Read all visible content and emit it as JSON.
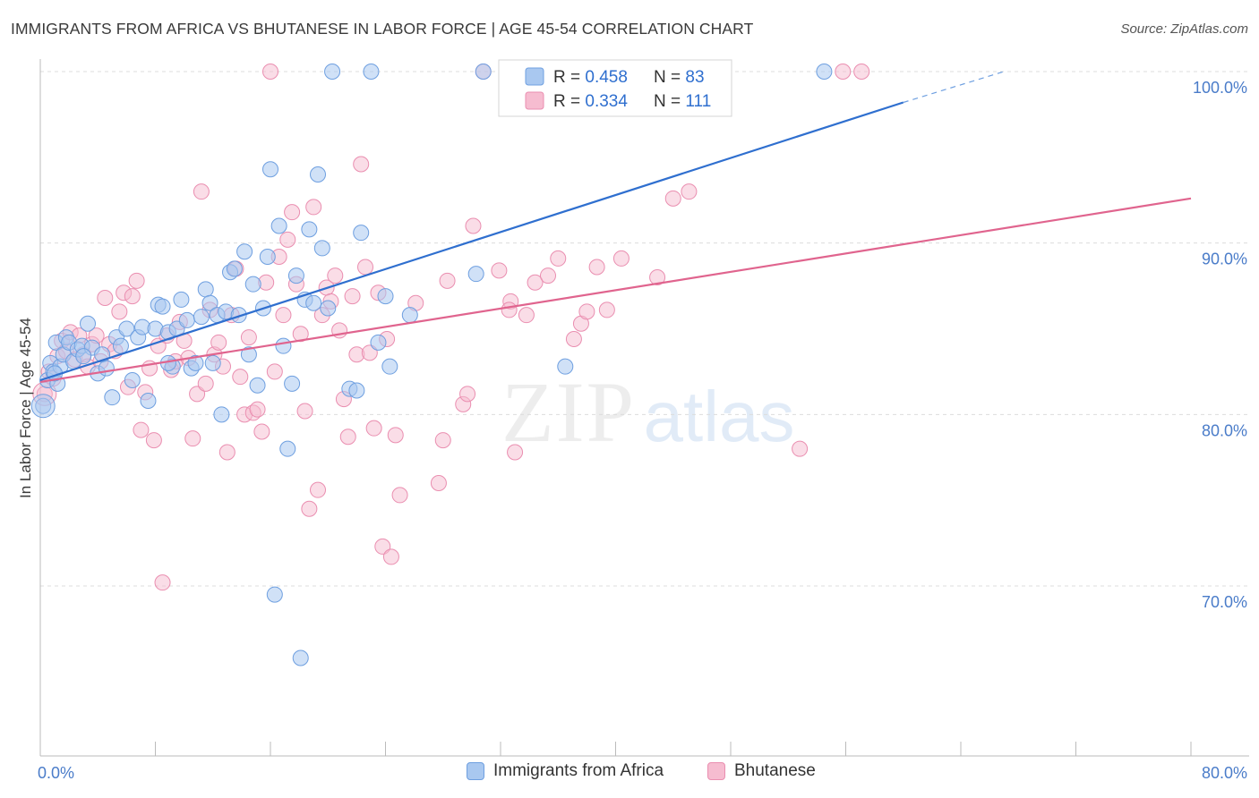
{
  "title": "IMMIGRANTS FROM AFRICA VS BHUTANESE IN LABOR FORCE | AGE 45-54 CORRELATION CHART",
  "source": "Source: ZipAtlas.com",
  "watermark": {
    "zip": "ZIP",
    "atlas": "atlas"
  },
  "colors": {
    "blue_fill": "#a9c8f0",
    "blue_stroke": "#6e9fe0",
    "blue_line": "#2f6fcf",
    "pink_fill": "#f6bcd0",
    "pink_stroke": "#ea8eb0",
    "pink_line": "#e0648e",
    "tick": "#4a7cc9",
    "grid": "#dcdcdc"
  },
  "legend": {
    "blue": {
      "r_label": "R = ",
      "r_value": "0.458",
      "n_label": "N = ",
      "n_value": "83"
    },
    "pink": {
      "r_label": "R = ",
      "r_value": "0.334",
      "n_label": "N = ",
      "n_value": "111"
    }
  },
  "chart_data": {
    "type": "scatter",
    "title": "IMMIGRANTS FROM AFRICA VS BHUTANESE IN LABOR FORCE | AGE 45-54 CORRELATION CHART",
    "xlabel": "",
    "ylabel": "In Labor Force | Age 45-54",
    "xlim": [
      0,
      80
    ],
    "ylim": [
      62,
      100
    ],
    "x_tick_labels": [
      "0.0%",
      "80.0%"
    ],
    "y_ticks": [
      70,
      80,
      90,
      100
    ],
    "y_tick_labels": [
      "70.0%",
      "80.0%",
      "90.0%",
      "100.0%"
    ],
    "grid": "horizontal dashed",
    "legend_position": "top-center",
    "series": [
      {
        "name": "Immigrants from Africa",
        "r": 0.458,
        "n": 83,
        "trend": {
          "x0": 0,
          "y0": 82.0,
          "x1": 60,
          "y1": 98.2,
          "dashed_to_x": 67,
          "dashed_to_y": 100.0
        },
        "points": [
          [
            0.2,
            80.5
          ],
          [
            0.5,
            82.0
          ],
          [
            0.7,
            83.0
          ],
          [
            0.9,
            82.5
          ],
          [
            1.1,
            84.2
          ],
          [
            1.2,
            81.8
          ],
          [
            1.4,
            82.8
          ],
          [
            1.6,
            83.5
          ],
          [
            1.8,
            84.5
          ],
          [
            2.0,
            84.2
          ],
          [
            2.3,
            83.1
          ],
          [
            2.6,
            83.8
          ],
          [
            2.9,
            84.0
          ],
          [
            3.3,
            85.3
          ],
          [
            3.6,
            83.9
          ],
          [
            4.0,
            82.4
          ],
          [
            4.3,
            83.5
          ],
          [
            4.6,
            82.7
          ],
          [
            5.0,
            81.0
          ],
          [
            5.3,
            84.5
          ],
          [
            5.6,
            84.0
          ],
          [
            6.0,
            85.0
          ],
          [
            6.4,
            82.0
          ],
          [
            6.8,
            84.5
          ],
          [
            7.1,
            85.1
          ],
          [
            7.5,
            80.8
          ],
          [
            8.0,
            85.0
          ],
          [
            8.2,
            86.4
          ],
          [
            8.5,
            86.3
          ],
          [
            8.9,
            84.8
          ],
          [
            9.2,
            82.8
          ],
          [
            9.5,
            85.0
          ],
          [
            9.8,
            86.7
          ],
          [
            10.2,
            85.5
          ],
          [
            10.5,
            82.7
          ],
          [
            10.8,
            83.0
          ],
          [
            11.2,
            85.7
          ],
          [
            11.5,
            87.3
          ],
          [
            11.8,
            86.5
          ],
          [
            12.0,
            83.0
          ],
          [
            12.3,
            85.8
          ],
          [
            12.6,
            80.0
          ],
          [
            12.9,
            86.0
          ],
          [
            13.2,
            88.3
          ],
          [
            13.5,
            88.5
          ],
          [
            13.8,
            85.8
          ],
          [
            14.2,
            89.5
          ],
          [
            14.5,
            83.5
          ],
          [
            14.8,
            87.6
          ],
          [
            15.1,
            81.7
          ],
          [
            15.5,
            86.2
          ],
          [
            15.8,
            89.2
          ],
          [
            16.0,
            94.3
          ],
          [
            16.3,
            69.5
          ],
          [
            16.6,
            91.0
          ],
          [
            16.9,
            84.0
          ],
          [
            17.2,
            78.0
          ],
          [
            17.5,
            81.8
          ],
          [
            17.8,
            88.1
          ],
          [
            18.1,
            65.8
          ],
          [
            18.4,
            86.7
          ],
          [
            18.7,
            90.8
          ],
          [
            19.0,
            86.5
          ],
          [
            19.3,
            94.0
          ],
          [
            19.6,
            89.7
          ],
          [
            20.0,
            86.2
          ],
          [
            20.3,
            100.0
          ],
          [
            21.5,
            81.5
          ],
          [
            22.0,
            81.4
          ],
          [
            22.3,
            90.6
          ],
          [
            23.0,
            100.0
          ],
          [
            23.5,
            84.2
          ],
          [
            24.0,
            86.9
          ],
          [
            24.3,
            82.8
          ],
          [
            25.7,
            85.8
          ],
          [
            30.3,
            88.2
          ],
          [
            30.8,
            100.0
          ],
          [
            32.5,
            100.0
          ],
          [
            36.5,
            82.8
          ],
          [
            54.5,
            100.0
          ],
          [
            8.9,
            83.0
          ],
          [
            1.0,
            82.4
          ],
          [
            3.0,
            83.4
          ]
        ]
      },
      {
        "name": "Bhutanese",
        "r": 0.334,
        "n": 111,
        "trend": {
          "x0": 0,
          "y0": 81.9,
          "x1": 80,
          "y1": 92.6
        },
        "points": [
          [
            0.3,
            81.2
          ],
          [
            0.6,
            82.5
          ],
          [
            0.9,
            82.1
          ],
          [
            1.2,
            83.4
          ],
          [
            1.5,
            84.3
          ],
          [
            1.8,
            83.7
          ],
          [
            2.1,
            84.8
          ],
          [
            2.4,
            83.2
          ],
          [
            2.7,
            84.6
          ],
          [
            3.0,
            83.5
          ],
          [
            3.3,
            82.8
          ],
          [
            3.6,
            84.1
          ],
          [
            3.9,
            84.6
          ],
          [
            4.2,
            83.1
          ],
          [
            4.5,
            86.8
          ],
          [
            4.8,
            84.1
          ],
          [
            5.2,
            83.7
          ],
          [
            5.5,
            86.0
          ],
          [
            5.8,
            87.1
          ],
          [
            6.1,
            81.6
          ],
          [
            6.4,
            86.9
          ],
          [
            6.7,
            87.8
          ],
          [
            7.0,
            79.1
          ],
          [
            7.3,
            81.3
          ],
          [
            7.6,
            82.7
          ],
          [
            7.9,
            78.5
          ],
          [
            8.2,
            84.0
          ],
          [
            8.5,
            70.2
          ],
          [
            8.8,
            84.6
          ],
          [
            9.1,
            82.6
          ],
          [
            9.4,
            83.1
          ],
          [
            9.7,
            85.4
          ],
          [
            10.0,
            84.3
          ],
          [
            10.3,
            83.3
          ],
          [
            10.6,
            78.6
          ],
          [
            10.9,
            81.2
          ],
          [
            11.2,
            93.0
          ],
          [
            11.5,
            81.8
          ],
          [
            11.8,
            86.1
          ],
          [
            12.1,
            83.5
          ],
          [
            12.4,
            84.2
          ],
          [
            12.7,
            82.8
          ],
          [
            13.0,
            77.8
          ],
          [
            13.3,
            85.8
          ],
          [
            13.6,
            88.5
          ],
          [
            13.9,
            82.2
          ],
          [
            14.2,
            80.0
          ],
          [
            14.5,
            84.5
          ],
          [
            14.8,
            80.1
          ],
          [
            15.1,
            80.3
          ],
          [
            15.4,
            79.0
          ],
          [
            15.7,
            87.7
          ],
          [
            16.0,
            100.0
          ],
          [
            16.3,
            82.5
          ],
          [
            16.6,
            89.2
          ],
          [
            16.9,
            85.8
          ],
          [
            17.2,
            90.2
          ],
          [
            17.5,
            91.8
          ],
          [
            17.8,
            87.6
          ],
          [
            18.1,
            84.7
          ],
          [
            18.4,
            80.2
          ],
          [
            18.7,
            74.5
          ],
          [
            19.0,
            92.1
          ],
          [
            19.3,
            75.6
          ],
          [
            19.6,
            85.8
          ],
          [
            19.9,
            87.4
          ],
          [
            20.2,
            86.6
          ],
          [
            20.5,
            88.1
          ],
          [
            20.8,
            84.9
          ],
          [
            21.1,
            80.9
          ],
          [
            21.4,
            78.7
          ],
          [
            21.7,
            86.9
          ],
          [
            22.0,
            83.5
          ],
          [
            22.3,
            94.6
          ],
          [
            22.6,
            88.6
          ],
          [
            22.9,
            83.6
          ],
          [
            23.2,
            79.2
          ],
          [
            23.5,
            87.1
          ],
          [
            23.8,
            72.3
          ],
          [
            24.1,
            84.4
          ],
          [
            24.4,
            71.7
          ],
          [
            24.7,
            78.8
          ],
          [
            25.0,
            75.3
          ],
          [
            26.1,
            86.5
          ],
          [
            27.7,
            76.0
          ],
          [
            28.0,
            78.5
          ],
          [
            28.3,
            87.8
          ],
          [
            29.4,
            80.6
          ],
          [
            29.7,
            81.2
          ],
          [
            30.1,
            91.0
          ],
          [
            30.8,
            100.0
          ],
          [
            31.9,
            88.4
          ],
          [
            32.7,
            86.6
          ],
          [
            33.0,
            77.8
          ],
          [
            33.8,
            85.8
          ],
          [
            34.4,
            87.7
          ],
          [
            35.3,
            88.1
          ],
          [
            36.0,
            89.1
          ],
          [
            37.1,
            84.4
          ],
          [
            37.6,
            85.3
          ],
          [
            38.0,
            86.0
          ],
          [
            38.7,
            88.6
          ],
          [
            39.4,
            86.1
          ],
          [
            40.4,
            89.1
          ],
          [
            42.9,
            88.0
          ],
          [
            44.0,
            92.6
          ],
          [
            45.1,
            93.0
          ],
          [
            52.8,
            78.0
          ],
          [
            55.8,
            100.0
          ],
          [
            57.1,
            100.0
          ],
          [
            32.6,
            86.1
          ]
        ]
      }
    ]
  },
  "bottom_legend": {
    "blue": "Immigrants from Africa",
    "pink": "Bhutanese"
  }
}
